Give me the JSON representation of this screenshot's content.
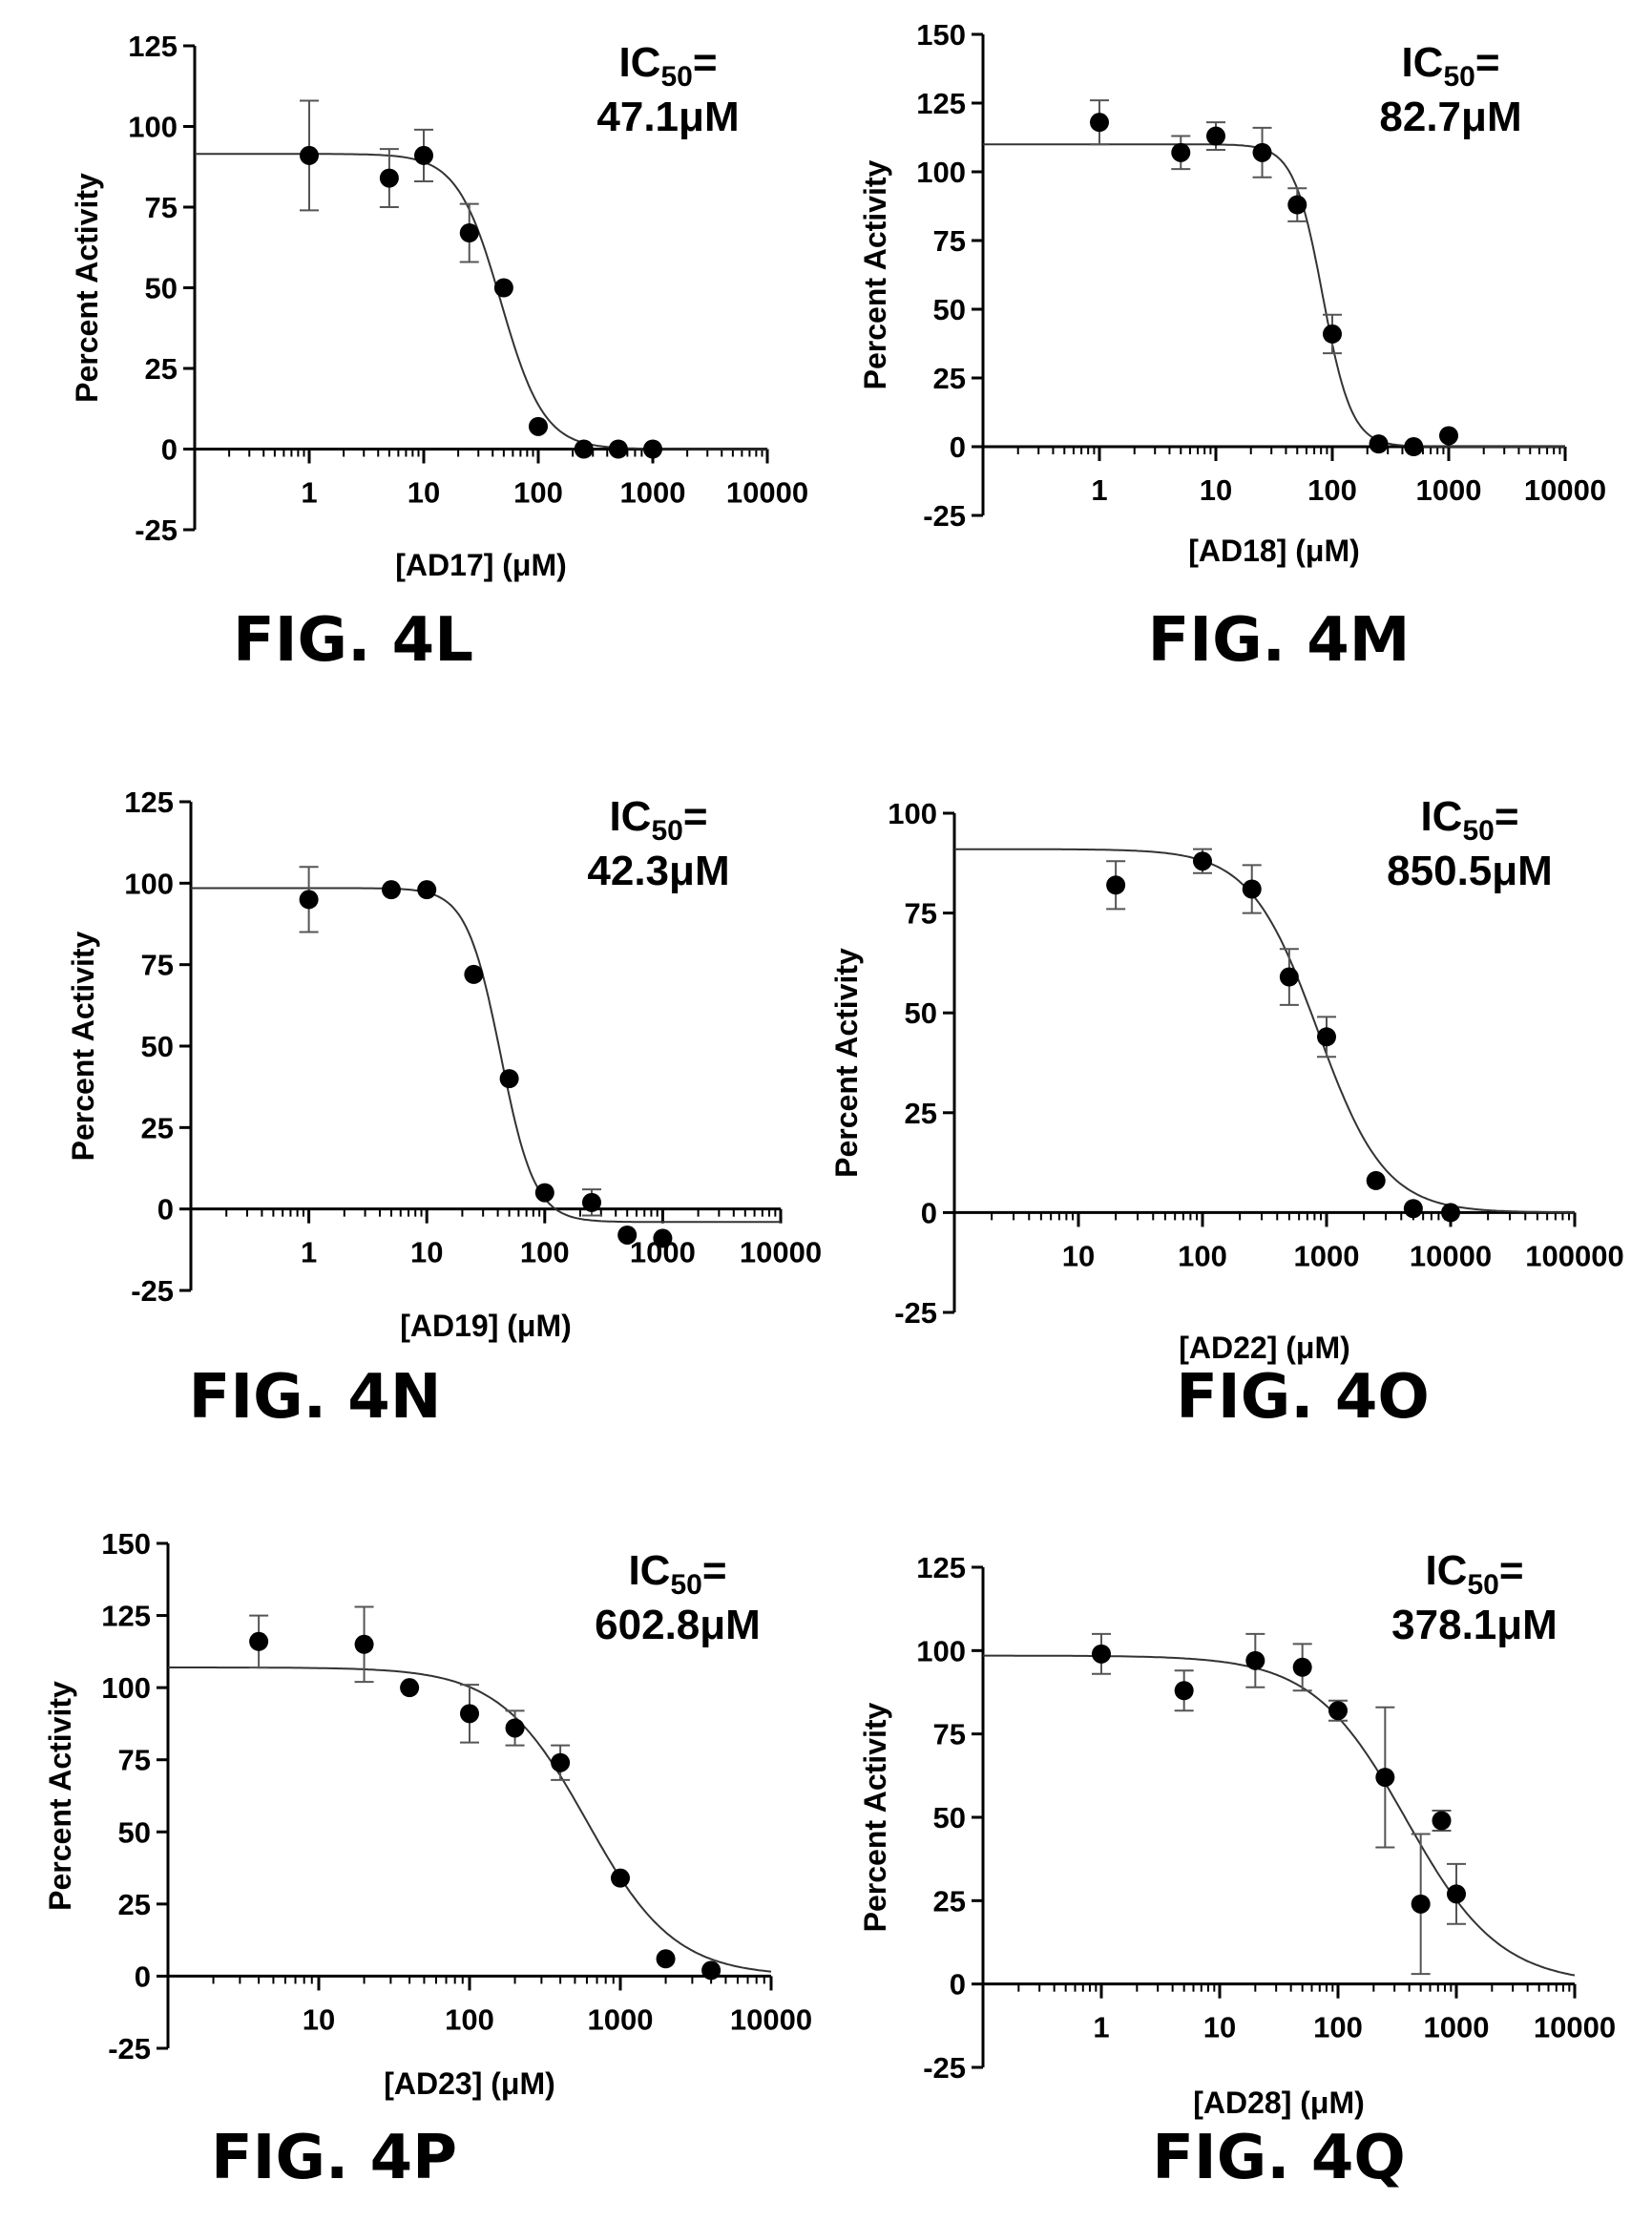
{
  "colors": {
    "ink": "#000000",
    "curve": "#333333",
    "errorbar": "#555555",
    "background": "#ffffff"
  },
  "chart_data": [
    {
      "id": "4L",
      "type": "scatter",
      "figure_label": "FIG. 4L",
      "xlabel": "[AD17] (μM)",
      "ylabel": "Percent Activity",
      "ic50_prefix": "IC",
      "ic50_sub": "50",
      "ic50_suffix": "=",
      "ic50_value": "47.1μM",
      "x_scale": "log",
      "xlim": [
        0.1,
        10000
      ],
      "ylim": [
        -25,
        125
      ],
      "x_ticks": [
        1,
        10,
        100,
        1000,
        10000
      ],
      "x_tick_labels": [
        "1",
        "10",
        "100",
        "1000",
        "10000"
      ],
      "y_ticks": [
        -25,
        0,
        25,
        50,
        75,
        100,
        125
      ],
      "y_tick_labels": [
        "-25",
        "0",
        "25",
        "50",
        "75",
        "100",
        "125"
      ],
      "series": [
        {
          "x": [
            1,
            5,
            10,
            25,
            50,
            100,
            250,
            500,
            1000
          ],
          "y": [
            91,
            84,
            91,
            67,
            50,
            7,
            0,
            0,
            0
          ],
          "error": [
            17,
            9,
            8,
            9,
            0,
            0,
            0,
            0,
            0
          ]
        }
      ],
      "fit": {
        "top": 91.5,
        "bottom": 0,
        "ic50": 47.1,
        "hill": 2.3
      }
    },
    {
      "id": "4M",
      "type": "scatter",
      "figure_label": "FIG. 4M",
      "xlabel": "[AD18] (μM)",
      "ylabel": "Percent Activity",
      "ic50_prefix": "IC",
      "ic50_sub": "50",
      "ic50_suffix": "=",
      "ic50_value": "82.7μM",
      "x_scale": "log",
      "xlim": [
        0.1,
        10000
      ],
      "ylim": [
        -25,
        150
      ],
      "x_ticks": [
        1,
        10,
        100,
        1000,
        10000
      ],
      "x_tick_labels": [
        "1",
        "10",
        "100",
        "1000",
        "10000"
      ],
      "y_ticks": [
        -25,
        0,
        25,
        50,
        75,
        100,
        125,
        150
      ],
      "y_tick_labels": [
        "-25",
        "0",
        "25",
        "50",
        "75",
        "100",
        "125",
        "150"
      ],
      "series": [
        {
          "x": [
            1,
            5,
            10,
            25,
            50,
            100,
            250,
            500,
            1000
          ],
          "y": [
            118,
            107,
            113,
            107,
            88,
            41,
            1,
            0,
            4
          ],
          "error": [
            8,
            6,
            5,
            9,
            6,
            7,
            0,
            0,
            0
          ]
        }
      ],
      "fit": {
        "top": 110,
        "bottom": 0,
        "ic50": 82.7,
        "hill": 3.5
      }
    },
    {
      "id": "4N",
      "type": "scatter",
      "figure_label": "FIG. 4N",
      "xlabel": "[AD19] (μM)",
      "ylabel": "Percent Activity",
      "ic50_prefix": "IC",
      "ic50_sub": "50",
      "ic50_suffix": "=",
      "ic50_value": "42.3μM",
      "x_scale": "log",
      "xlim": [
        0.1,
        10000
      ],
      "ylim": [
        -25,
        125
      ],
      "x_ticks": [
        1,
        10,
        100,
        1000,
        10000
      ],
      "x_tick_labels": [
        "1",
        "10",
        "100",
        "1000",
        "10000"
      ],
      "y_ticks": [
        -25,
        0,
        25,
        50,
        75,
        100,
        125
      ],
      "y_tick_labels": [
        "-25",
        "0",
        "25",
        "50",
        "75",
        "100",
        "125"
      ],
      "series": [
        {
          "x": [
            1,
            5,
            10,
            25,
            50,
            100,
            250,
            500,
            1000
          ],
          "y": [
            95,
            98,
            98,
            72,
            40,
            5,
            2,
            -8,
            -9
          ],
          "error": [
            10,
            0,
            0,
            0,
            0,
            0,
            4,
            0,
            0
          ]
        }
      ],
      "fit": {
        "top": 98.5,
        "bottom": -4,
        "ic50": 42.3,
        "hill": 3
      }
    },
    {
      "id": "4O",
      "type": "scatter",
      "figure_label": "FIG. 4O",
      "xlabel": "[AD22] (μM)",
      "ylabel": "Percent Activity",
      "ic50_prefix": "IC",
      "ic50_sub": "50",
      "ic50_suffix": "=",
      "ic50_value": "850.5μM",
      "x_scale": "log",
      "xlim": [
        1,
        100000
      ],
      "ylim": [
        -25,
        100
      ],
      "x_ticks": [
        10,
        100,
        1000,
        10000,
        100000
      ],
      "x_tick_labels": [
        "10",
        "100",
        "1000",
        "10000",
        "100000"
      ],
      "y_ticks": [
        -25,
        0,
        25,
        50,
        75,
        100
      ],
      "y_tick_labels": [
        "-25",
        "0",
        "25",
        "50",
        "75",
        "100"
      ],
      "series": [
        {
          "x": [
            20,
            100,
            250,
            500,
            1000,
            2500,
            5000,
            10000
          ],
          "y": [
            82,
            88,
            81,
            59,
            44,
            8,
            1,
            0
          ],
          "error": [
            6,
            3,
            6,
            7,
            5,
            0,
            0,
            0
          ]
        }
      ],
      "fit": {
        "top": 91,
        "bottom": 0,
        "ic50": 850.5,
        "hill": 1.6
      }
    },
    {
      "id": "4P",
      "type": "scatter",
      "figure_label": "FIG. 4P",
      "xlabel": "[AD23] (μM)",
      "ylabel": "Percent Activity",
      "ic50_prefix": "IC",
      "ic50_sub": "50",
      "ic50_suffix": "=",
      "ic50_value": "602.8μM",
      "x_scale": "log",
      "xlim": [
        1,
        10000
      ],
      "ylim": [
        -25,
        150
      ],
      "x_ticks": [
        10,
        100,
        1000,
        10000
      ],
      "x_tick_labels": [
        "10",
        "100",
        "1000",
        "10000"
      ],
      "y_ticks": [
        -25,
        0,
        25,
        50,
        75,
        100,
        125,
        150
      ],
      "y_tick_labels": [
        "-25",
        "0",
        "25",
        "50",
        "75",
        "100",
        "125",
        "150"
      ],
      "series": [
        {
          "x": [
            4,
            20,
            40,
            100,
            200,
            400,
            1000,
            2000,
            4000
          ],
          "y": [
            116,
            115,
            100,
            91,
            86,
            74,
            34,
            6,
            2
          ],
          "error": [
            9,
            13,
            0,
            10,
            6,
            6,
            0,
            0,
            0
          ]
        }
      ],
      "fit": {
        "top": 107,
        "bottom": 0,
        "ic50": 602.8,
        "hill": 1.5
      }
    },
    {
      "id": "4Q",
      "type": "scatter",
      "figure_label": "FIG. 4Q",
      "xlabel": "[AD28] (μM)",
      "ylabel": "Percent Activity",
      "ic50_prefix": "IC",
      "ic50_sub": "50",
      "ic50_suffix": "=",
      "ic50_value": "378.1μM",
      "x_scale": "log",
      "xlim": [
        0.1,
        10000
      ],
      "ylim": [
        -25,
        125
      ],
      "x_ticks": [
        1,
        10,
        100,
        1000,
        10000
      ],
      "x_tick_labels": [
        "1",
        "10",
        "100",
        "1000",
        "10000"
      ],
      "y_ticks": [
        -25,
        0,
        25,
        50,
        75,
        100,
        125
      ],
      "y_tick_labels": [
        "-25",
        "0",
        "25",
        "50",
        "75",
        "100",
        "125"
      ],
      "series": [
        {
          "x": [
            1,
            5,
            20,
            50,
            100,
            250,
            500,
            750,
            1000
          ],
          "y": [
            99,
            88,
            97,
            95,
            82,
            62,
            24,
            49,
            27
          ],
          "error": [
            6,
            6,
            8,
            7,
            3,
            21,
            21,
            3,
            9
          ]
        }
      ],
      "fit": {
        "top": 98.5,
        "bottom": 0,
        "ic50": 378.1,
        "hill": 1.1
      }
    }
  ]
}
